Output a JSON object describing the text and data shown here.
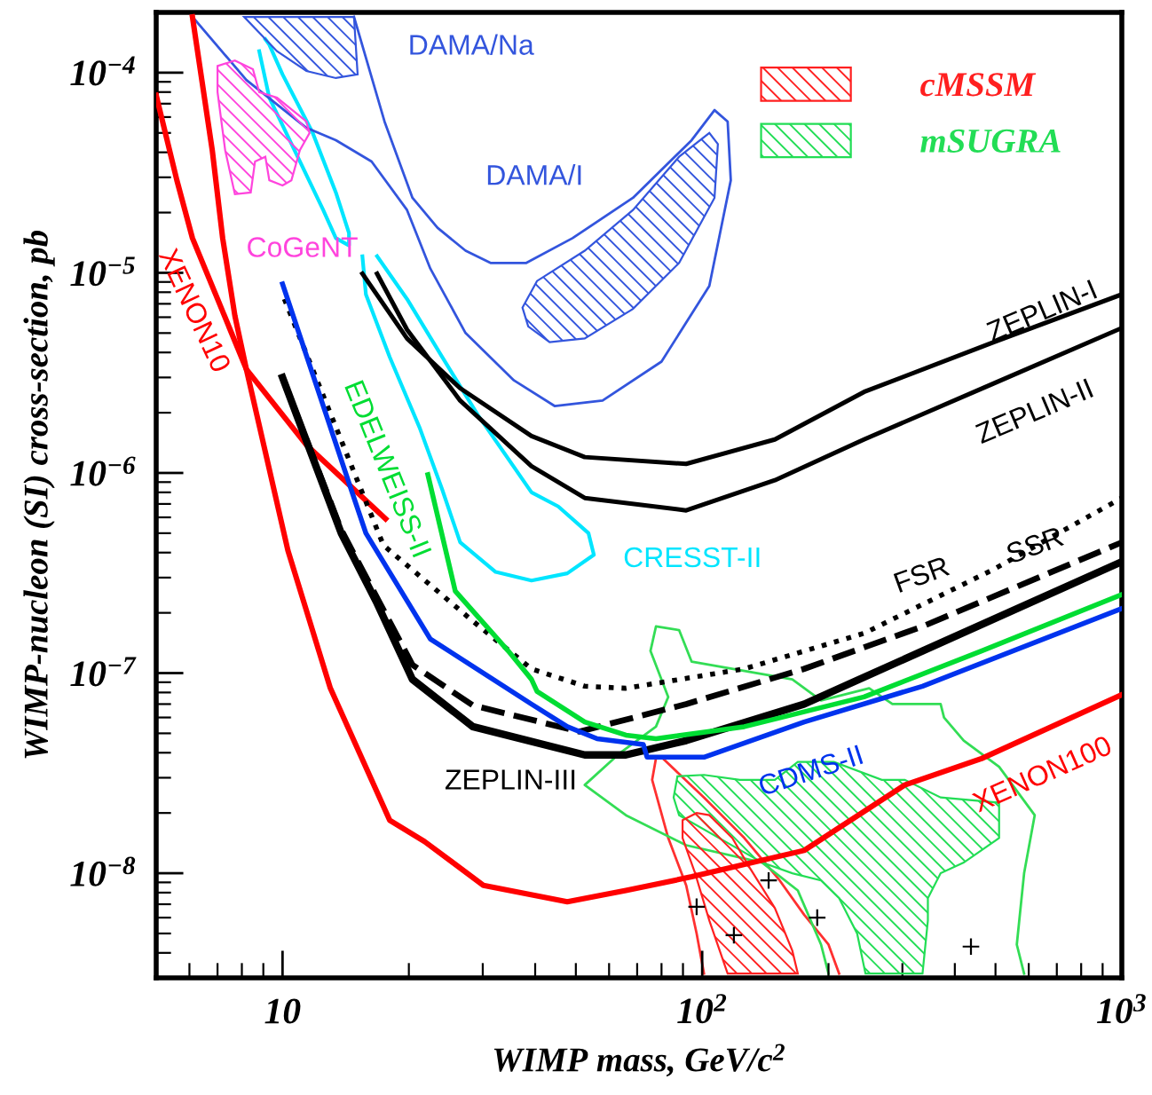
{
  "chart_data": {
    "type": "line",
    "xlabel": "WIMP mass, GeV/c$^{2}$",
    "ylabel": "WIMP-nucleon (SI) cross-section, pb",
    "log": "xy",
    "xlim": [
      5,
      1000
    ],
    "ylim": [
      3e-09,
      0.0002
    ],
    "xticks": [
      10,
      {
        "value": 100,
        "label": "10$^{2}$"
      },
      {
        "value": 1000,
        "label": "10$^{3}$"
      }
    ],
    "yticks": [
      {
        "value": 1e-08,
        "label": "10$^{−8}$"
      },
      {
        "value": 1e-07,
        "label": "10$^{−7}$"
      },
      {
        "value": 1e-06,
        "label": "10$^{−6}$"
      },
      {
        "value": 1e-05,
        "label": "10$^{−5}$"
      },
      {
        "value": 0.0001,
        "label": "10$^{−4}$"
      }
    ],
    "legend": "top right",
    "series": [
      {
        "name": "XENON10",
        "color": "#ff0000",
        "x": [
          5.0,
          5.6,
          6.1,
          7.0,
          8.2,
          11.4,
          17.6
        ],
        "values": [
          7.7e-05,
          2.9e-05,
          1.49e-05,
          7.4e-06,
          3.3e-06,
          1.38e-06,
          5.9e-07
        ]
      },
      {
        "name": "XENON100",
        "color": "#ff0000",
        "x": [
          6.1,
          6.8,
          7.2,
          7.7,
          8.2,
          10.3,
          13.0,
          18.0,
          21.8,
          30.1,
          47.7,
          65.8,
          94.4,
          175,
          304,
          463,
          1000
        ],
        "values": [
          0.00019,
          4.1e-05,
          1.49e-05,
          6.1e-06,
          3.3e-06,
          4.1e-07,
          8.4e-08,
          1.84e-08,
          1.44e-08,
          8.7e-09,
          7.2e-09,
          8.2e-09,
          9.6e-09,
          1.3e-08,
          2.76e-08,
          3.74e-08,
          7.8e-08
        ]
      },
      {
        "name": "ZEPLIN-I",
        "color": "#000000",
        "x": [
          15.5,
          19.8,
          26.5,
          39.2,
          52.5,
          91.6,
          149,
          243,
          495,
          1000
        ],
        "values": [
          9.9e-06,
          4.7e-06,
          2.65e-06,
          1.53e-06,
          1.2e-06,
          1.11e-06,
          1.47e-06,
          2.54e-06,
          4.5e-06,
          7.8e-06
        ]
      },
      {
        "name": "ZEPLIN-II",
        "color": "#000000",
        "x": [
          16.8,
          19.8,
          26.5,
          39.2,
          52.5,
          91.6,
          149,
          243,
          495,
          1000
        ],
        "values": [
          9.9e-06,
          5.2e-06,
          2.3e-06,
          1.08e-06,
          7.5e-07,
          6.5e-07,
          9.2e-07,
          1.47e-06,
          2.8e-06,
          5.3e-06
        ]
      },
      {
        "name": "ZEPLIN-III",
        "color": "#000000",
        "x": [
          10,
          13.8,
          16.8,
          20.4,
          28.4,
          52.5,
          65.8,
          91.6,
          175,
          335,
          1000
        ],
        "values": [
          3e-06,
          5e-07,
          2.23e-07,
          9.3e-08,
          5.4e-08,
          3.9e-08,
          3.9e-08,
          4.6e-08,
          7e-08,
          1.29e-07,
          3.6e-07
        ]
      },
      {
        "name": "SSR",
        "line_style": "dashed",
        "color": "#000000",
        "x": [
          10,
          13.8,
          20.4,
          28.4,
          51,
          91.6,
          175,
          335,
          1000
        ],
        "values": [
          3e-06,
          5.2e-07,
          1.1e-07,
          6.9e-08,
          5.1e-08,
          7e-08,
          1.05e-07,
          1.71e-07,
          4.5e-07
        ]
      },
      {
        "name": "FSR",
        "line_style": "dotted",
        "color": "#000000",
        "x": [
          10.1,
          17.4,
          28.4,
          39.2,
          52.5,
          65.8,
          126,
          243,
          495,
          1000
        ],
        "values": [
          7.4e-06,
          4.35e-07,
          1.82e-07,
          1.05e-07,
          8.6e-08,
          8.4e-08,
          1.05e-07,
          1.58e-07,
          3.3e-07,
          7.5e-07
        ]
      },
      {
        "name": "CDMS-II",
        "color": "#0033ee",
        "x": [
          10,
          14.8,
          15.8,
          22.5,
          39.2,
          47.7,
          56.2,
          72.4,
          73.9,
          101,
          175,
          335,
          1000
        ],
        "values": [
          8.8e-06,
          7.5e-07,
          5e-07,
          1.48e-07,
          7e-08,
          5.4e-08,
          4.7e-08,
          4.4e-08,
          3.8e-08,
          3.8e-08,
          5.7e-08,
          8.6e-08,
          2.1e-07
        ]
      },
      {
        "name": "EDELWEISS-II",
        "color": "#00dd33",
        "x": [
          22.2,
          25.8,
          34.5,
          39.2,
          40.4,
          52.5,
          65.8,
          77.6,
          126,
          243,
          463,
          1000
        ],
        "values": [
          9.8e-07,
          2.57e-07,
          1.29e-07,
          9.3e-08,
          8.1e-08,
          5.7e-08,
          4.9e-08,
          4.7e-08,
          5.4e-08,
          7.6e-08,
          1.29e-07,
          2.47e-07
        ]
      },
      {
        "name": "CRESST-II",
        "color": "#00e5ff",
        "x": [
          15.5,
          15.8,
          18.0,
          21.2,
          24.0,
          26.5,
          32.2,
          39.2,
          47.7,
          55.2,
          53.6,
          45.4,
          39.2,
          29.2,
          24.0,
          19.8,
          16.8
        ],
        "values": [
          1.21e-05,
          7.8e-06,
          3.8e-06,
          1.69e-06,
          8.3e-07,
          4.5e-07,
          3.2e-07,
          2.9e-07,
          3.15e-07,
          3.9e-07,
          5e-07,
          6.8e-07,
          8e-07,
          1.95e-06,
          3.8e-06,
          7.4e-06,
          1.21e-05
        ]
      },
      {
        "color": "#00e5ff",
        "x": [
          9.1,
          9.3,
          10,
          11.8,
          13.4,
          14.4,
          14.4,
          13.4,
          12.5,
          11.0,
          9.3,
          8.8
        ],
        "values": [
          0.000147,
          0.000138,
          9.8e-05,
          5e-05,
          2.52e-05,
          1.58e-05,
          1.37e-05,
          1.49e-05,
          2.06e-05,
          3.6e-05,
          7.5e-05,
          0.000128
        ]
      },
      {
        "color": "#3355dd",
        "x": [
          6.1,
          8.2,
          11.4,
          13.4,
          16.3,
          19.8,
          22.5,
          27.3,
          35.6,
          44.5,
          57.9,
          80,
          104,
          117,
          115,
          107,
          94.4,
          68.4,
          49.1,
          38.1,
          31.3,
          27.3,
          23.4,
          20.4,
          17.5,
          14.8
        ],
        "values": [
          0.00019,
          9.2e-05,
          5.3e-05,
          4.6e-05,
          3.6e-05,
          2.06e-05,
          1.05e-05,
          5e-06,
          2.9e-06,
          2.16e-06,
          2.3e-06,
          3.6e-06,
          8.6e-06,
          2.9e-05,
          5.7e-05,
          6.5e-05,
          4.6e-05,
          2.37e-05,
          1.49e-05,
          1.12e-05,
          1.12e-05,
          1.29e-05,
          1.68e-05,
          2.37e-05,
          5.7e-05,
          0.00019
        ]
      },
      {
        "name": "DAMA/Na",
        "type": "area",
        "color": "#3355dd",
        "x": [
          8.1,
          14.8,
          15.1,
          13.4,
          11.4,
          9.7
        ],
        "values": [
          0.00019,
          0.00019,
          9.8e-05,
          9.4e-05,
          0.000102,
          0.000128
        ]
      },
      {
        "name": "DAMA/I",
        "type": "area",
        "color": "#3355dd",
        "x": [
          37.3,
          40.4,
          52.5,
          68.4,
          88.1,
          104,
          109,
          107,
          88.1,
          68.4,
          52.5,
          43.3,
          38.5
        ],
        "values": [
          6.7e-06,
          9.1e-06,
          1.29e-05,
          2.06e-05,
          3.8e-05,
          5e-05,
          4.4e-05,
          2.37e-05,
          1.12e-05,
          6.6e-06,
          4.7e-06,
          4.5e-06,
          5.4e-06
        ]
      },
      {
        "name": "CoGeNT",
        "type": "area",
        "color": "#ff44dd",
        "x": [
          7.0,
          7.7,
          8.5,
          8.8,
          9.7,
          11.4,
          11.6,
          11.0,
          10.5,
          10,
          9.3,
          9.1,
          8.6,
          8.4,
          7.7,
          7.3,
          7.0
        ],
        "values": [
          0.000108,
          0.000115,
          0.000104,
          8e-05,
          7.5e-05,
          5.7e-05,
          5e-05,
          4.1e-05,
          2.9e-05,
          2.73e-05,
          2.9e-05,
          3.8e-05,
          3.6e-05,
          2.52e-05,
          2.47e-05,
          4.1e-05,
          8e-05
        ]
      },
      {
        "name": "cMSSM",
        "type": "area",
        "color": "#ff2020",
        "x": [
          89.8,
          97,
          104,
          118,
          130,
          149,
          164,
          169,
          115,
          104,
          96.2,
          89.8
        ],
        "values": [
          1.84e-08,
          2e-08,
          1.95e-08,
          1.5e-08,
          1.06e-08,
          6.7e-09,
          4.1e-09,
          3.15e-09,
          3.15e-09,
          5.8e-09,
          1e-08,
          1.5e-08
        ]
      },
      {
        "name": "mSUGRA",
        "type": "area",
        "color": "#22dd55",
        "x": [
          85.5,
          87.3,
          101,
          123,
          149,
          169,
          206,
          268,
          304,
          370,
          510,
          510,
          420,
          370,
          345,
          345,
          335,
          245,
          234,
          212,
          192,
          164,
          139,
          88.1
        ],
        "values": [
          2.39e-08,
          3.05e-08,
          3.1e-08,
          2.93e-08,
          2.93e-08,
          3.6e-08,
          3.6e-08,
          2.93e-08,
          2.93e-08,
          2.39e-08,
          2.25e-08,
          1.5e-08,
          1.13e-08,
          1e-08,
          7.5e-09,
          5.8e-09,
          3.15e-09,
          3.15e-09,
          5e-09,
          7.5e-09,
          9.2e-09,
          1e-08,
          1.13e-08,
          1.95e-08
        ]
      },
      {
        "color": "#ff3030",
        "x": [
          101,
          97,
          91.6,
          83,
          76,
          77.6,
          80,
          101,
          126,
          153,
          175,
          200,
          212
        ],
        "values": [
          3.15e-09,
          5e-09,
          8.7e-09,
          1.5e-08,
          2.93e-08,
          3.74e-08,
          3.8e-08,
          2.39e-08,
          1.5e-08,
          9.2e-09,
          6.2e-09,
          4.4e-09,
          3.15e-09
        ]
      },
      {
        "color": "#33dd55",
        "x": [
          200,
          192,
          169,
          139,
          91.6,
          65.8,
          52.5,
          63.8,
          77.6,
          83,
          75.3,
          77.6,
          88.1,
          94.4,
          139,
          164,
          192,
          250,
          284,
          370,
          377,
          420,
          510,
          620,
          585,
          562,
          585
        ],
        "values": [
          3.15e-09,
          4.4e-09,
          8.2e-09,
          1.13e-08,
          1.38e-08,
          1.95e-08,
          2.76e-08,
          4e-08,
          5.4e-08,
          7.6e-08,
          1.29e-07,
          1.71e-07,
          1.64e-07,
          1.14e-07,
          9.9e-08,
          9.3e-08,
          7.3e-08,
          8.4e-08,
          7e-08,
          7e-08,
          6e-08,
          4.6e-08,
          3.4e-08,
          1.95e-08,
          1e-08,
          4.4e-09,
          3.15e-09
        ]
      },
      {
        "type": "scatter",
        "marker": "cross",
        "color": "#000000",
        "x": [
          97,
          119,
          144,
          188,
          437
        ],
        "values": [
          6.8e-09,
          4.9e-09,
          9.2e-09,
          6e-09,
          4.3e-09
        ]
      }
    ]
  }
}
